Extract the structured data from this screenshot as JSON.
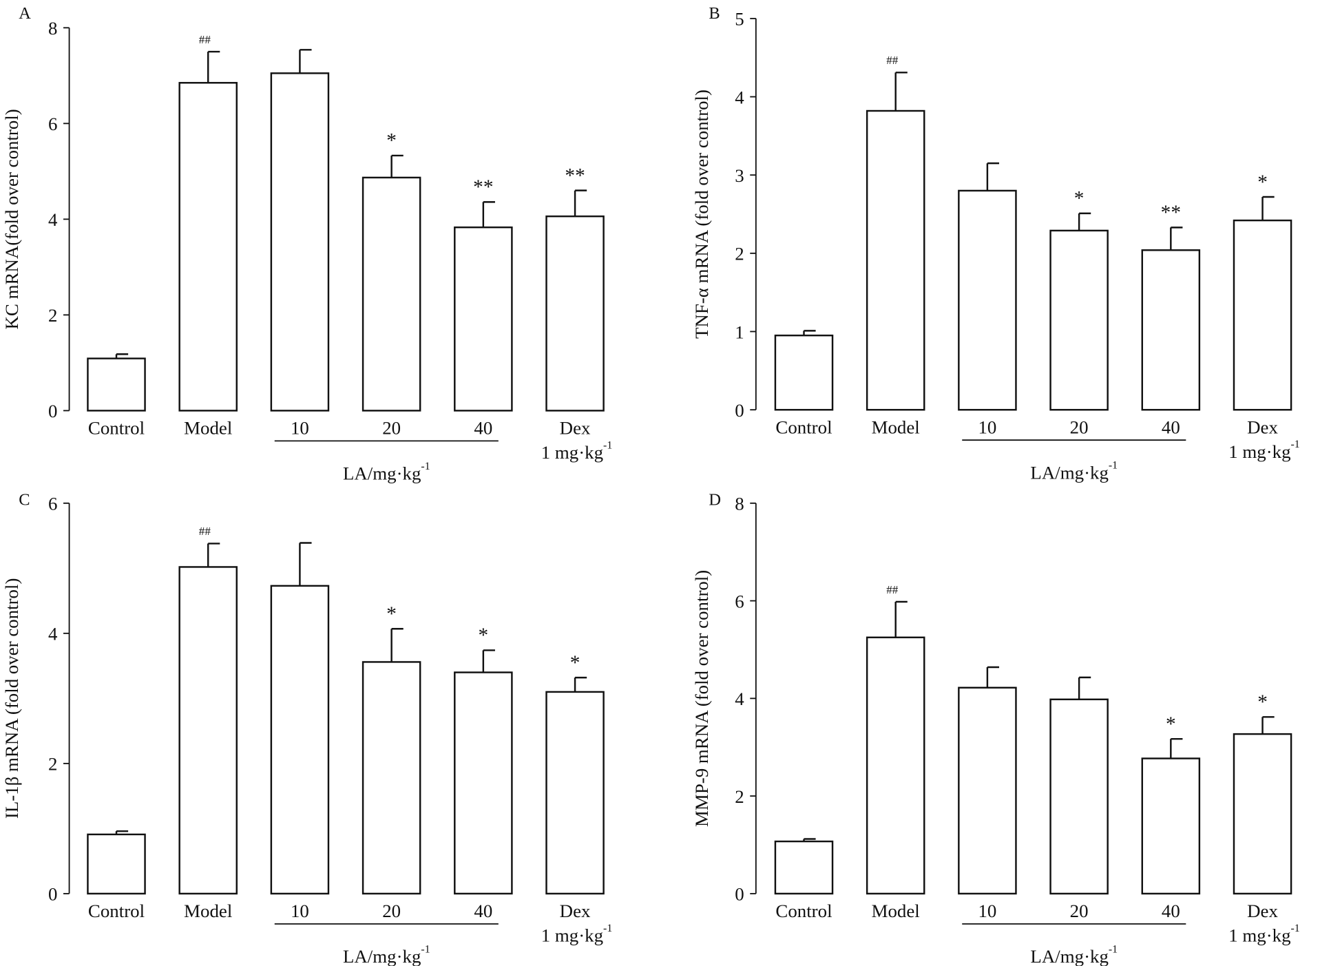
{
  "chart_data": [
    {
      "type": "bar",
      "panel": "A",
      "ylabel": "KC mRNA(fold over control)",
      "ylim": [
        0,
        8
      ],
      "yticks": [
        0,
        2,
        4,
        6,
        8
      ],
      "categories": [
        "Control",
        "Model",
        "10",
        "20",
        "40",
        "Dex"
      ],
      "category_sublabel": {
        "Dex": "1 mg·kg"
      },
      "group_label": "LA/mg·kg",
      "group_label_sup": "-1",
      "values": [
        1.09,
        6.85,
        7.05,
        4.87,
        3.83,
        4.06
      ],
      "errors": [
        0.09,
        0.65,
        0.49,
        0.46,
        0.53,
        0.54
      ],
      "annotations": [
        "",
        "##",
        "",
        "*",
        "**",
        "**"
      ]
    },
    {
      "type": "bar",
      "panel": "B",
      "ylabel": "TNF-α mRNA (fold over control)",
      "ylim": [
        0,
        5
      ],
      "yticks": [
        0,
        1,
        2,
        3,
        4,
        5
      ],
      "categories": [
        "Control",
        "Model",
        "10",
        "20",
        "40",
        "Dex"
      ],
      "category_sublabel": {
        "Dex": "1 mg·kg"
      },
      "group_label": "LA/mg·kg",
      "group_label_sup": "-1",
      "values": [
        0.95,
        3.82,
        2.8,
        2.29,
        2.04,
        2.42
      ],
      "errors": [
        0.06,
        0.49,
        0.35,
        0.22,
        0.29,
        0.3
      ],
      "annotations": [
        "",
        "##",
        "",
        "*",
        "**",
        "*"
      ]
    },
    {
      "type": "bar",
      "panel": "C",
      "ylabel": "IL-1β mRNA (fold over control)",
      "ylim": [
        0,
        6
      ],
      "yticks": [
        0,
        2,
        4,
        6
      ],
      "categories": [
        "Control",
        "Model",
        "10",
        "20",
        "40",
        "Dex"
      ],
      "category_sublabel": {
        "Dex": "1 mg·kg"
      },
      "group_label": "LA/mg·kg",
      "group_label_sup": "-1",
      "values": [
        0.91,
        5.02,
        4.73,
        3.56,
        3.4,
        3.1
      ],
      "errors": [
        0.05,
        0.36,
        0.66,
        0.51,
        0.34,
        0.22
      ],
      "annotations": [
        "",
        "##",
        "",
        "*",
        "*",
        "*"
      ]
    },
    {
      "type": "bar",
      "panel": "D",
      "ylabel": "MMP-9 mRNA (fold over control)",
      "ylim": [
        0,
        8
      ],
      "yticks": [
        0,
        2,
        4,
        6,
        8
      ],
      "categories": [
        "Control",
        "Model",
        "10",
        "20",
        "40",
        "Dex"
      ],
      "category_sublabel": {
        "Dex": "1 mg·kg"
      },
      "group_label": "LA/mg·kg",
      "group_label_sup": "-1",
      "values": [
        1.07,
        5.25,
        4.22,
        3.98,
        2.77,
        3.27
      ],
      "errors": [
        0.05,
        0.73,
        0.42,
        0.45,
        0.4,
        0.35
      ],
      "annotations": [
        "",
        "##",
        "",
        "",
        "*",
        "*"
      ]
    }
  ]
}
